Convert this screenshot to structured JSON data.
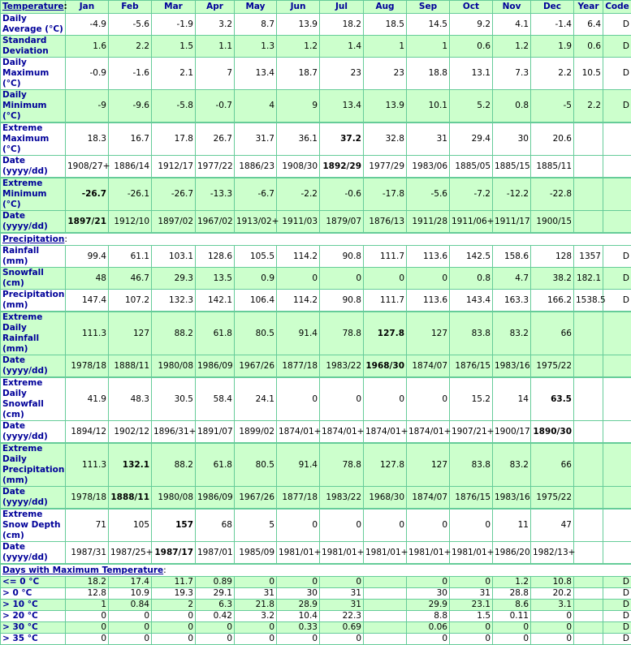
{
  "header": {
    "section": {
      "link": "Temperature",
      "suffix": ":"
    },
    "columns": [
      "Jan",
      "Feb",
      "Mar",
      "Apr",
      "May",
      "Jun",
      "Jul",
      "Aug",
      "Sep",
      "Oct",
      "Nov",
      "Dec",
      "Year",
      "Code"
    ]
  },
  "sections": [
    {
      "rows": [
        {
          "label": "Daily Average (°C)",
          "background": "#ffffff",
          "values": [
            -4.9,
            -5.6,
            -1.9,
            3.2,
            8.7,
            13.9,
            18.2,
            18.5,
            14.5,
            9.2,
            4.1,
            -1.4,
            6.4,
            "D"
          ]
        },
        {
          "label": "Standard Deviation",
          "background": "#ccffcc",
          "values": [
            1.6,
            2.2,
            1.5,
            1.1,
            1.3,
            1.2,
            1.4,
            1,
            1,
            0.6,
            1.2,
            1.9,
            0.6,
            "D"
          ]
        },
        {
          "label": "Daily Maximum (°C)",
          "background": "#ffffff",
          "values": [
            -0.9,
            -1.6,
            2.1,
            7,
            13.4,
            18.7,
            23,
            23,
            18.8,
            13.1,
            7.3,
            2.2,
            10.5,
            "D"
          ]
        },
        {
          "label": "Daily Minimum (°C)",
          "background": "#ccffcc",
          "values": [
            -9,
            -9.6,
            -5.8,
            -0.7,
            4,
            9,
            13.4,
            13.9,
            10.1,
            5.2,
            0.8,
            -5,
            2.2,
            "D"
          ]
        },
        {
          "label": "Extreme Maximum (°C)",
          "background": "#ffffff",
          "bold": 6,
          "values": [
            18.3,
            16.7,
            17.8,
            26.7,
            31.7,
            36.1,
            37.2,
            32.8,
            31,
            29.4,
            30,
            20.6,
            null,
            null
          ]
        },
        {
          "label": "Date (yyyy/dd)",
          "background": "#ffffff",
          "bold": 6,
          "values": [
            "1908/27+",
            "1886/14",
            "1912/17",
            "1977/22",
            "1886/23",
            "1908/30",
            "1892/29",
            "1977/29",
            "1983/06",
            "1885/05",
            "1885/15",
            "1885/11",
            null,
            null
          ]
        },
        {
          "label": "Extreme Minimum (°C)",
          "background": "#ccffcc",
          "bold": 0,
          "values": [
            -26.7,
            -26.1,
            -26.7,
            -13.3,
            -6.7,
            -2.2,
            -0.6,
            -17.8,
            -5.6,
            -7.2,
            -12.2,
            -22.8,
            null,
            null
          ]
        },
        {
          "label": "Date (yyyy/dd)",
          "background": "#ccffcc",
          "bold": 0,
          "values": [
            "1897/21",
            "1912/10",
            "1897/02",
            "1967/02",
            "1913/02+",
            "1911/03",
            "1879/07",
            "1876/13",
            "1911/28",
            "1911/06+",
            "1911/17",
            "1900/15",
            null,
            null
          ]
        }
      ]
    },
    {
      "title": {
        "link": "Precipitation",
        "suffix": ":"
      },
      "rows": [
        {
          "label": "Rainfall (mm)",
          "background": "#ffffff",
          "values": [
            99.4,
            61.1,
            103.1,
            128.6,
            105.5,
            114.2,
            90.8,
            111.7,
            113.6,
            142.5,
            158.6,
            128,
            1357,
            "D"
          ]
        },
        {
          "label": "Snowfall (cm)",
          "background": "#ccffcc",
          "values": [
            48,
            46.7,
            29.3,
            13.5,
            0.9,
            0,
            0,
            0,
            0,
            0.8,
            4.7,
            38.2,
            182.1,
            "D"
          ]
        },
        {
          "label": "Precipitation (mm)",
          "background": "#ffffff",
          "values": [
            147.4,
            107.2,
            132.3,
            142.1,
            106.4,
            114.2,
            90.8,
            111.7,
            113.6,
            143.4,
            163.3,
            166.2,
            1538.5,
            "D"
          ]
        },
        {
          "label": "Extreme Daily Rainfall (mm)",
          "background": "#ccffcc",
          "bold": 7,
          "values": [
            111.3,
            127,
            88.2,
            61.8,
            80.5,
            91.4,
            78.8,
            127.8,
            127,
            83.8,
            83.2,
            66,
            null,
            null
          ]
        },
        {
          "label": "Date (yyyy/dd)",
          "background": "#ccffcc",
          "bold": 7,
          "values": [
            "1978/18",
            "1888/11",
            "1980/08",
            "1986/09",
            "1967/26",
            "1877/18",
            "1983/22",
            "1968/30",
            "1874/07",
            "1876/15",
            "1983/16",
            "1975/22",
            null,
            null
          ]
        },
        {
          "label": "Extreme Daily Snowfall (cm)",
          "background": "#ffffff",
          "bold": 11,
          "values": [
            41.9,
            48.3,
            30.5,
            58.4,
            24.1,
            0,
            0,
            0,
            0,
            15.2,
            14,
            63.5,
            null,
            null
          ]
        },
        {
          "label": "Date (yyyy/dd)",
          "background": "#ffffff",
          "bold": 11,
          "values": [
            "1894/12",
            "1902/12",
            "1896/31+",
            "1891/07",
            "1899/02",
            "1874/01+",
            "1874/01+",
            "1874/01+",
            "1874/01+",
            "1907/21+",
            "1900/17",
            "1890/30",
            null,
            null
          ]
        },
        {
          "label": "Extreme Daily Precipitation (mm)",
          "background": "#ccffcc",
          "bold": 1,
          "values": [
            111.3,
            132.1,
            88.2,
            61.8,
            80.5,
            91.4,
            78.8,
            127.8,
            127,
            83.8,
            83.2,
            66,
            null,
            null
          ]
        },
        {
          "label": "Date (yyyy/dd)",
          "background": "#ccffcc",
          "bold": 1,
          "values": [
            "1978/18",
            "1888/11",
            "1980/08",
            "1986/09",
            "1967/26",
            "1877/18",
            "1983/22",
            "1968/30",
            "1874/07",
            "1876/15",
            "1983/16",
            "1975/22",
            null,
            null
          ]
        },
        {
          "label": "Extreme Snow Depth (cm)",
          "background": "#ffffff",
          "bold": 2,
          "values": [
            71,
            105,
            157,
            68,
            5,
            0,
            0,
            0,
            0,
            0,
            11,
            47,
            null,
            null
          ]
        },
        {
          "label": "Date (yyyy/dd)",
          "background": "#ffffff",
          "bold": 2,
          "values": [
            "1987/31",
            "1987/25+",
            "1987/17",
            "1987/01",
            "1985/09",
            "1981/01+",
            "1981/01+",
            "1981/01+",
            "1981/01+",
            "1981/01+",
            "1986/20",
            "1982/13+",
            null,
            null
          ]
        }
      ]
    },
    {
      "title": {
        "link": "Days with Maximum Temperature",
        "suffix": ":"
      },
      "rows": [
        {
          "label": "<= 0 °C",
          "background": "#ccffcc",
          "values": [
            18.2,
            17.4,
            11.7,
            0.89,
            0,
            0,
            0,
            null,
            0,
            0,
            1.2,
            10.8,
            null,
            "D"
          ]
        },
        {
          "label": "> 0 °C",
          "background": "#ffffff",
          "values": [
            12.8,
            10.9,
            19.3,
            29.1,
            31,
            30,
            31,
            null,
            30,
            31,
            28.8,
            20.2,
            null,
            "D"
          ]
        },
        {
          "label": "> 10 °C",
          "background": "#ccffcc",
          "values": [
            1,
            0.84,
            2,
            6.3,
            21.8,
            28.9,
            31,
            null,
            29.9,
            23.1,
            8.6,
            3.1,
            null,
            "D"
          ]
        },
        {
          "label": "> 20 °C",
          "background": "#ffffff",
          "values": [
            0,
            0,
            0,
            0.42,
            3.2,
            10.4,
            22.3,
            null,
            8.8,
            1.5,
            0.11,
            0,
            null,
            "D"
          ]
        },
        {
          "label": "> 30 °C",
          "background": "#ccffcc",
          "values": [
            0,
            0,
            0,
            0,
            0,
            0.33,
            0.69,
            null,
            0.06,
            0,
            0,
            0,
            null,
            "D"
          ]
        },
        {
          "label": "> 35 °C",
          "background": "#ffffff",
          "values": [
            0,
            0,
            0,
            0,
            0,
            0,
            0,
            null,
            0,
            0,
            0,
            0,
            null,
            "D"
          ]
        }
      ]
    }
  ]
}
